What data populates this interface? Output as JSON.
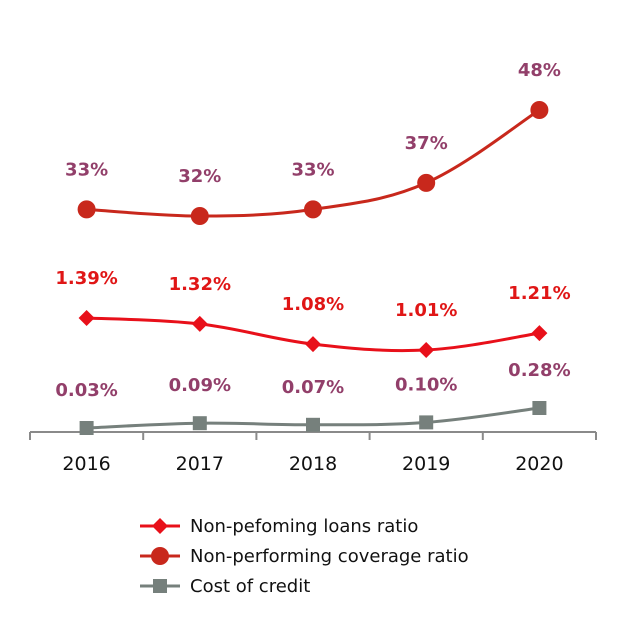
{
  "chart_data": {
    "type": "line",
    "title": "",
    "xlabel": "",
    "ylabel": "",
    "categories": [
      "2016",
      "2017",
      "2018",
      "2019",
      "2020"
    ],
    "grid": false,
    "legend_position": "bottom",
    "series": [
      {
        "key": "npl",
        "name": "Non-pefoming loans ratio",
        "values": [
          1.39,
          1.32,
          1.08,
          1.01,
          1.21
        ],
        "labels": [
          "1.39%",
          "1.32%",
          "1.08%",
          "1.01%",
          "1.21%"
        ],
        "color": "#e8101a",
        "label_color": "#e01616",
        "marker": "diamond"
      },
      {
        "key": "coverage",
        "name": "Non-performing coverage ratio",
        "values": [
          33,
          32,
          33,
          37,
          48
        ],
        "labels": [
          "33%",
          "32%",
          "33%",
          "37%",
          "48%"
        ],
        "color": "#c8281c",
        "label_color": "#923f6a",
        "marker": "circle"
      },
      {
        "key": "cost",
        "name": "Cost of credit",
        "values": [
          0.03,
          0.09,
          0.07,
          0.1,
          0.28
        ],
        "labels": [
          "0.03%",
          "0.09%",
          "0.07%",
          "0.10%",
          "0.28%"
        ],
        "color": "#76807c",
        "label_color": "#923f6a",
        "marker": "square"
      }
    ]
  }
}
